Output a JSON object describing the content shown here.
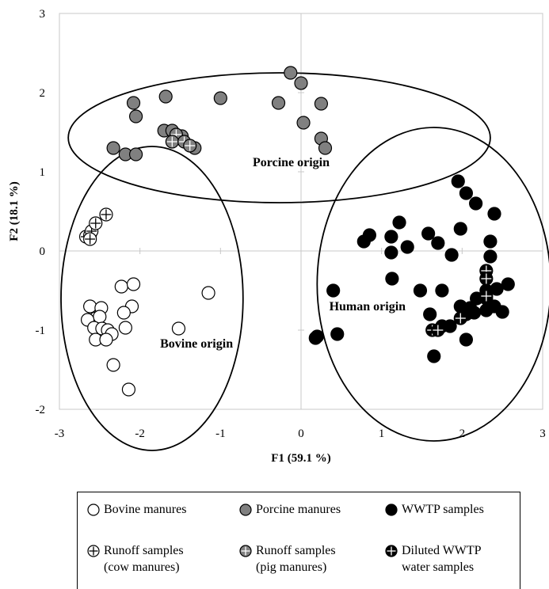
{
  "chart_data": {
    "type": "scatter",
    "title": "",
    "xlabel": "F1 (59.1 %)",
    "ylabel": "F2 (18.1 %)",
    "xlim": [
      -3,
      3
    ],
    "ylim": [
      -2,
      3
    ],
    "xticks": [
      "-3",
      "-2",
      "-1",
      "0",
      "1",
      "2",
      "3"
    ],
    "yticks": [
      "-2",
      "-1",
      "0",
      "1",
      "2",
      "3"
    ],
    "grid": false,
    "legend_position": "bottom",
    "group_labels": [
      {
        "text": "Porcine origin",
        "x": -0.6,
        "y": 1.07
      },
      {
        "text": "Human origin",
        "x": 0.35,
        "y": -0.75
      },
      {
        "text": "Bovine origin",
        "x": -1.75,
        "y": -1.22
      }
    ],
    "ellipses": [
      {
        "name": "porcine",
        "cx": -0.27,
        "cy": 1.43,
        "rx": 2.62,
        "ry": 0.82
      },
      {
        "name": "bovine",
        "cx": -1.85,
        "cy": -0.6,
        "rx": 1.13,
        "ry": 1.92
      },
      {
        "name": "human",
        "cx": 1.65,
        "cy": -0.42,
        "rx": 1.45,
        "ry": 1.98
      }
    ],
    "series": [
      {
        "name": "Bovine manures",
        "marker": "open",
        "points": [
          [
            -2.62,
            -0.7
          ],
          [
            -2.55,
            -0.85
          ],
          [
            -2.48,
            -0.72
          ],
          [
            -2.5,
            -0.83
          ],
          [
            -2.65,
            -0.87
          ],
          [
            -2.57,
            -0.97
          ],
          [
            -2.47,
            -0.98
          ],
          [
            -2.4,
            -1.0
          ],
          [
            -2.35,
            -1.05
          ],
          [
            -2.55,
            -1.12
          ],
          [
            -2.42,
            -1.12
          ],
          [
            -2.23,
            -0.45
          ],
          [
            -2.08,
            -0.42
          ],
          [
            -2.1,
            -0.7
          ],
          [
            -2.2,
            -0.78
          ],
          [
            -2.18,
            -0.97
          ],
          [
            -1.52,
            -0.98
          ],
          [
            -1.15,
            -0.53
          ],
          [
            -2.33,
            -1.44
          ],
          [
            -2.14,
            -1.75
          ]
        ]
      },
      {
        "name": "Porcine manures",
        "marker": "filled-gray",
        "points": [
          [
            -2.08,
            1.87
          ],
          [
            -2.05,
            1.7
          ],
          [
            -1.68,
            1.95
          ],
          [
            -1.0,
            1.93
          ],
          [
            -2.33,
            1.3
          ],
          [
            -2.18,
            1.22
          ],
          [
            -2.05,
            1.22
          ],
          [
            -1.7,
            1.52
          ],
          [
            -1.6,
            1.52
          ],
          [
            -1.48,
            1.45
          ],
          [
            -1.32,
            1.3
          ],
          [
            -0.28,
            1.87
          ],
          [
            -0.13,
            2.25
          ],
          [
            0.0,
            2.12
          ],
          [
            0.03,
            1.62
          ],
          [
            0.25,
            1.86
          ],
          [
            0.25,
            1.42
          ],
          [
            0.3,
            1.3
          ]
        ]
      },
      {
        "name": "WWTP samples",
        "marker": "filled-black",
        "points": [
          [
            1.95,
            0.88
          ],
          [
            2.05,
            0.73
          ],
          [
            2.17,
            0.6
          ],
          [
            2.4,
            0.47
          ],
          [
            2.35,
            0.12
          ],
          [
            1.22,
            0.36
          ],
          [
            0.85,
            0.2
          ],
          [
            0.78,
            0.12
          ],
          [
            1.12,
            0.18
          ],
          [
            1.12,
            -0.02
          ],
          [
            1.32,
            0.05
          ],
          [
            1.58,
            0.22
          ],
          [
            1.7,
            0.1
          ],
          [
            1.87,
            -0.05
          ],
          [
            1.98,
            0.28
          ],
          [
            2.35,
            -0.07
          ],
          [
            2.57,
            -0.42
          ],
          [
            2.3,
            -0.5
          ],
          [
            2.43,
            -0.48
          ],
          [
            2.18,
            -0.6
          ],
          [
            2.3,
            -0.6
          ],
          [
            2.1,
            -0.72
          ],
          [
            1.98,
            -0.7
          ],
          [
            2.15,
            -0.78
          ],
          [
            2.3,
            -0.75
          ],
          [
            2.4,
            -0.7
          ],
          [
            2.5,
            -0.77
          ],
          [
            2.05,
            -0.8
          ],
          [
            1.6,
            -0.8
          ],
          [
            1.48,
            -0.5
          ],
          [
            1.75,
            -0.5
          ],
          [
            1.13,
            -0.35
          ],
          [
            0.4,
            -0.5
          ],
          [
            1.75,
            -0.95
          ],
          [
            1.85,
            -0.95
          ],
          [
            2.05,
            -1.12
          ],
          [
            0.45,
            -1.05
          ],
          [
            0.2,
            -1.08
          ],
          [
            0.18,
            -1.1
          ],
          [
            1.65,
            -1.33
          ]
        ]
      },
      {
        "name": "Runoff samples (cow manures)",
        "marker": "open-cross",
        "points": [
          [
            -2.67,
            0.18
          ],
          [
            -2.62,
            0.2
          ],
          [
            -2.6,
            0.25
          ],
          [
            -2.55,
            0.35
          ],
          [
            -2.42,
            0.46
          ],
          [
            -2.62,
            0.15
          ]
        ]
      },
      {
        "name": "Runoff samples (pig manures)",
        "marker": "gray-cross",
        "points": [
          [
            -1.55,
            1.42
          ],
          [
            -1.55,
            1.47
          ],
          [
            -1.6,
            1.38
          ],
          [
            -1.45,
            1.38
          ],
          [
            -1.38,
            1.33
          ]
        ]
      },
      {
        "name": "Diluted WWTP water samples",
        "marker": "black-cross",
        "points": [
          [
            2.3,
            -0.25
          ],
          [
            2.3,
            -0.35
          ],
          [
            2.3,
            -0.57
          ],
          [
            1.98,
            -0.85
          ],
          [
            1.63,
            -1.0
          ],
          [
            1.7,
            -1.0
          ]
        ]
      }
    ]
  },
  "legend": {
    "items": [
      {
        "marker": "open",
        "label": "Bovine manures"
      },
      {
        "marker": "filled-gray",
        "label": "Porcine manures"
      },
      {
        "marker": "filled-black",
        "label": "WWTP samples"
      },
      {
        "marker": "open-cross",
        "label": "Runoff samples\n(cow manures)"
      },
      {
        "marker": "gray-cross",
        "label": "Runoff samples\n(pig manures)"
      },
      {
        "marker": "black-cross",
        "label": "Diluted WWTP\nwater samples"
      }
    ]
  },
  "colors": {
    "gray_fill": "#808080",
    "black_fill": "#000000",
    "open_fill": "#ffffff",
    "stroke": "#000000"
  }
}
